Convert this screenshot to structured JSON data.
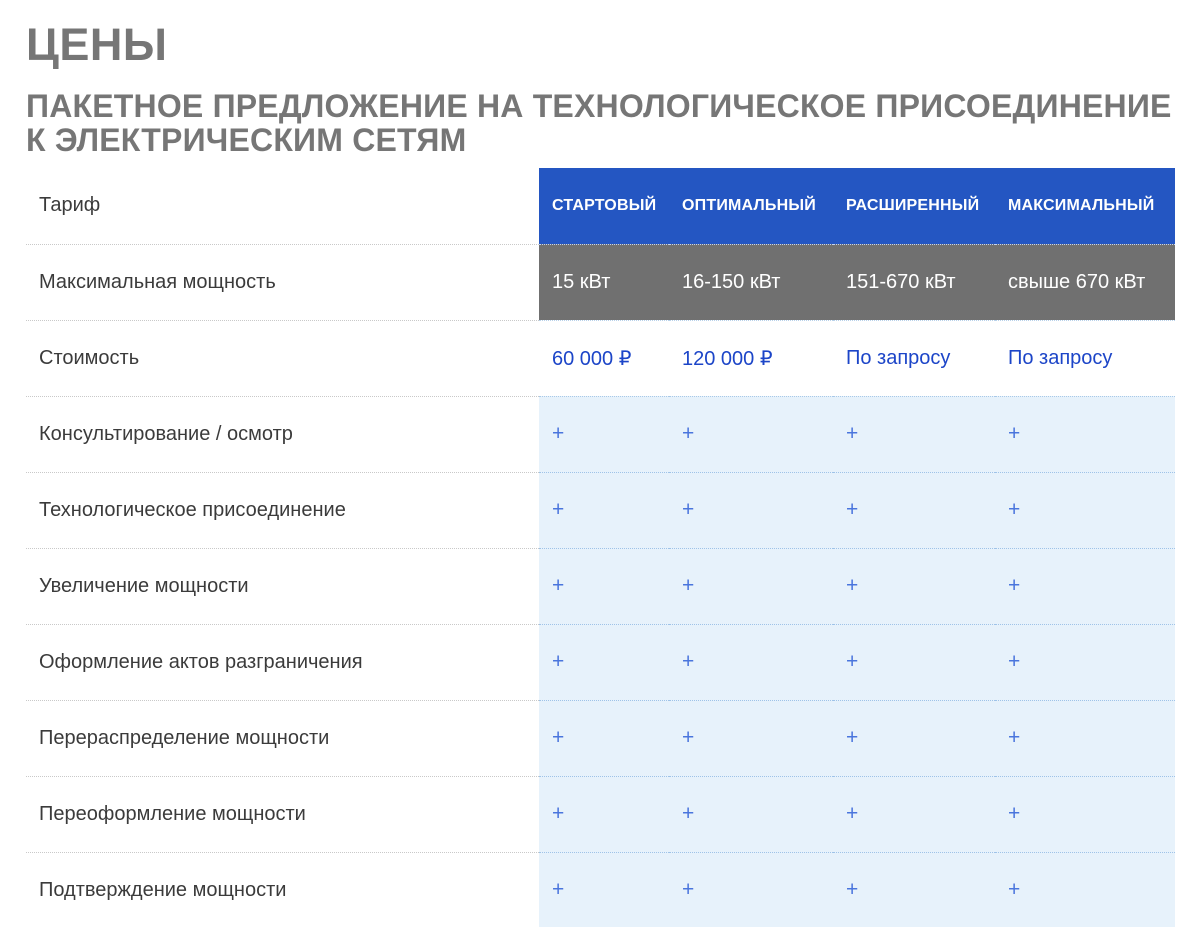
{
  "page": {
    "title": "ЦЕНЫ",
    "subtitle_lines": [
      "ПАКЕТНОЕ ПРЕДЛОЖЕНИЕ НА ТЕХНОЛОГИЧЕСКОЕ ПРИСОЕДИНЕНИЕ",
      "К ЭЛЕКТРИЧЕСКИМ СЕТЯМ"
    ]
  },
  "colors": {
    "plan_header_bg": "#2456c2",
    "power_row_bg": "#707070",
    "feature_cell_bg": "#e7f2fb",
    "price_text": "#1c45c8",
    "plus_text": "#4a75dd",
    "heading_text": "#767676",
    "label_text": "#3b3b3b"
  },
  "table": {
    "corner_label": "Тариф",
    "plans": [
      "СТАРТОВЫЙ",
      "ОПТИМАЛЬНЫЙ",
      "РАСШИРЕННЫЙ",
      "МАКСИМАЛЬНЫЙ"
    ],
    "power": {
      "label": "Максимальная мощность",
      "values": [
        "15 кВт",
        "16-150 кВт",
        "151-670 кВт",
        "свыше 670 кВт"
      ]
    },
    "price": {
      "label": "Стоимость",
      "values": [
        "60 000 ₽",
        "120 000 ₽",
        "По запросу",
        "По запросу"
      ]
    },
    "features": [
      {
        "label": "Консультирование / осмотр",
        "values": [
          "+",
          "+",
          "+",
          "+"
        ]
      },
      {
        "label": "Технологическое присоединение",
        "values": [
          "+",
          "+",
          "+",
          "+"
        ]
      },
      {
        "label": "Увеличение мощности",
        "values": [
          "+",
          "+",
          "+",
          "+"
        ]
      },
      {
        "label": "Оформление актов разграничения",
        "values": [
          "+",
          "+",
          "+",
          "+"
        ]
      },
      {
        "label": "Перераспределение мощности",
        "values": [
          "+",
          "+",
          "+",
          "+"
        ]
      },
      {
        "label": "Переоформление мощности",
        "values": [
          "+",
          "+",
          "+",
          "+"
        ]
      },
      {
        "label": "Подтверждение мощности",
        "values": [
          "+",
          "+",
          "+",
          "+"
        ]
      }
    ]
  }
}
